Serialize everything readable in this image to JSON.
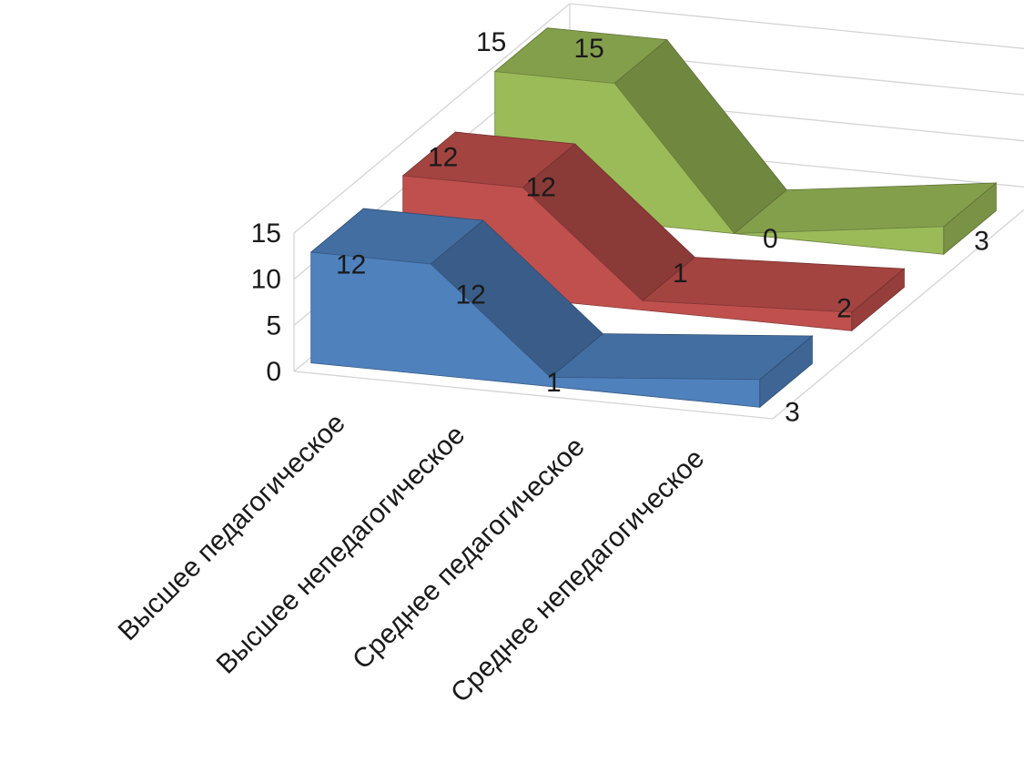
{
  "chart_data": {
    "type": "area",
    "three_d": true,
    "categories": [
      "Высшее педагогическое",
      "Высшее непедагогическое",
      "Среднее педагогическое",
      "Среднее непедагогическое"
    ],
    "series": [
      {
        "values": [
          12,
          12,
          1,
          3
        ],
        "color": "#4f81bd"
      },
      {
        "values": [
          12,
          12,
          1,
          2
        ],
        "color": "#c0504d"
      },
      {
        "values": [
          15,
          15,
          0,
          3
        ],
        "color": "#9bbb59"
      }
    ],
    "y_ticks": [
      "0",
      "5",
      "10",
      "15"
    ],
    "ylim": [
      0,
      15
    ],
    "grid": true,
    "legend": "none"
  }
}
